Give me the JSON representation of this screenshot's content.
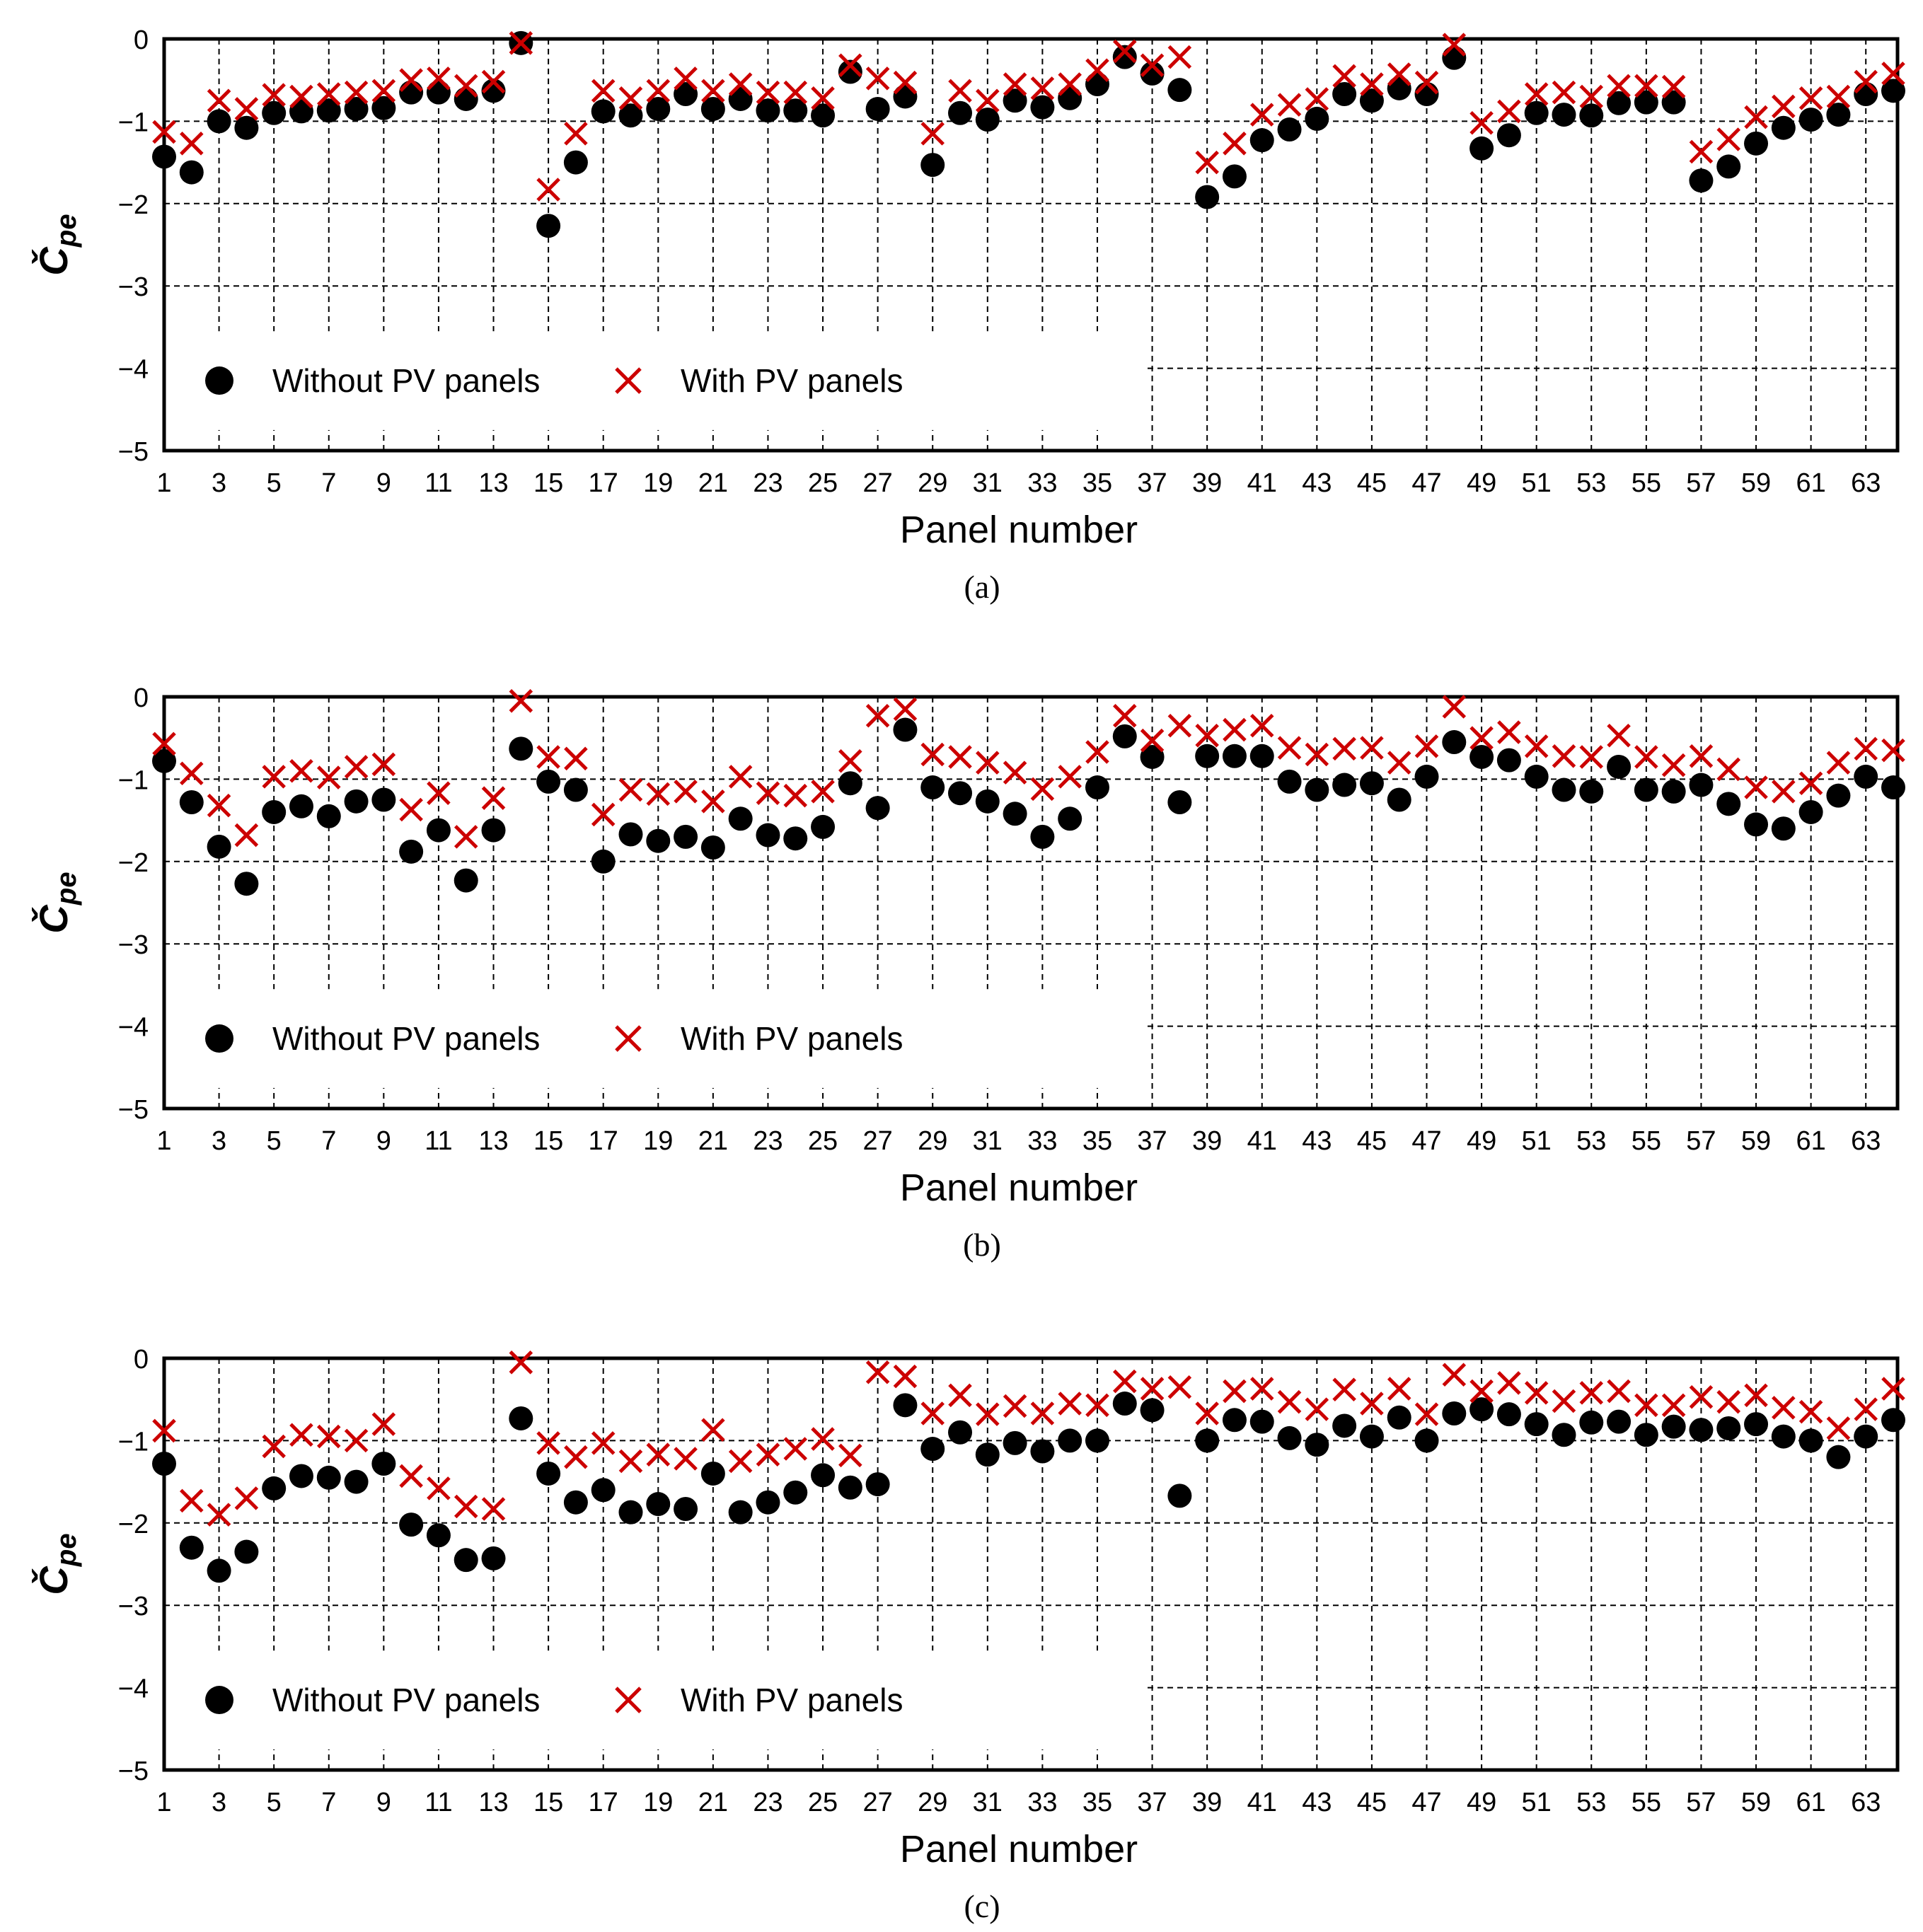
{
  "chart_data": [
    {
      "type": "scatter",
      "caption": "(a)",
      "xlabel": "Panel number",
      "ylabel": "Č",
      "ylabel_sub": "pe",
      "ylim": [
        -5,
        0
      ],
      "y_ticks": [
        "0",
        "−1",
        "−2",
        "−3",
        "−4",
        "−5"
      ],
      "x_tick_labels": [
        "1",
        "3",
        "5",
        "7",
        "9",
        "11",
        "13",
        "15",
        "17",
        "19",
        "21",
        "23",
        "25",
        "27",
        "29",
        "31",
        "33",
        "35",
        "37",
        "39",
        "41",
        "43",
        "45",
        "47",
        "49",
        "51",
        "53",
        "55",
        "57",
        "59",
        "61",
        "63"
      ],
      "legend": {
        "placement": "bottom-left"
      },
      "series": [
        {
          "name": "Without PV panels",
          "marker": "circle",
          "color": "#000000",
          "values": [
            -1.43,
            -1.62,
            -1.0,
            -1.08,
            -0.9,
            -0.88,
            -0.87,
            -0.85,
            -0.84,
            -0.65,
            -0.65,
            -0.73,
            -0.63,
            -0.05,
            -2.27,
            -1.5,
            -0.88,
            -0.93,
            -0.85,
            -0.67,
            -0.85,
            -0.73,
            -0.87,
            -0.87,
            -0.93,
            -0.4,
            -0.85,
            -0.7,
            -1.53,
            -0.9,
            -0.98,
            -0.75,
            -0.83,
            -0.72,
            -0.55,
            -0.22,
            -0.42,
            -0.62,
            -1.92,
            -1.67,
            -1.23,
            -1.1,
            -0.97,
            -0.67,
            -0.75,
            -0.6,
            -0.67,
            -0.23,
            -1.33,
            -1.17,
            -0.9,
            -0.92,
            -0.93,
            -0.78,
            -0.77,
            -0.77,
            -1.72,
            -1.55,
            -1.27,
            -1.08,
            -0.98,
            -0.92,
            -0.67,
            -0.63
          ]
        },
        {
          "name": "With PV panels",
          "marker": "x",
          "color": "#cc0000",
          "values": [
            -1.13,
            -1.27,
            -0.75,
            -0.85,
            -0.68,
            -0.7,
            -0.67,
            -0.65,
            -0.63,
            -0.5,
            -0.48,
            -0.57,
            -0.52,
            -0.05,
            -1.83,
            -1.15,
            -0.63,
            -0.72,
            -0.63,
            -0.48,
            -0.63,
            -0.55,
            -0.65,
            -0.65,
            -0.72,
            -0.32,
            -0.48,
            -0.53,
            -1.15,
            -0.63,
            -0.75,
            -0.55,
            -0.6,
            -0.55,
            -0.38,
            -0.15,
            -0.32,
            -0.22,
            -1.5,
            -1.27,
            -0.92,
            -0.8,
            -0.73,
            -0.45,
            -0.55,
            -0.43,
            -0.53,
            -0.07,
            -1.02,
            -0.88,
            -0.67,
            -0.65,
            -0.7,
            -0.57,
            -0.57,
            -0.58,
            -1.37,
            -1.22,
            -0.95,
            -0.82,
            -0.72,
            -0.7,
            -0.52,
            -0.42
          ]
        }
      ]
    },
    {
      "type": "scatter",
      "caption": "(b)",
      "xlabel": "Panel number",
      "ylabel": "Č",
      "ylabel_sub": "pe",
      "ylim": [
        -5,
        0
      ],
      "y_ticks": [
        "0",
        "−1",
        "−2",
        "−3",
        "−4",
        "−5"
      ],
      "x_tick_labels": [
        "1",
        "3",
        "5",
        "7",
        "9",
        "11",
        "13",
        "15",
        "17",
        "19",
        "21",
        "23",
        "25",
        "27",
        "29",
        "31",
        "33",
        "35",
        "37",
        "39",
        "41",
        "43",
        "45",
        "47",
        "49",
        "51",
        "53",
        "55",
        "57",
        "59",
        "61",
        "63"
      ],
      "legend": {
        "placement": "bottom-left"
      },
      "series": [
        {
          "name": "Without PV panels",
          "marker": "circle",
          "color": "#000000",
          "values": [
            -0.78,
            -1.28,
            -1.82,
            -2.27,
            -1.4,
            -1.33,
            -1.45,
            -1.27,
            -1.25,
            -1.88,
            -1.62,
            -2.23,
            -1.62,
            -0.63,
            -1.03,
            -1.13,
            -2.0,
            -1.67,
            -1.75,
            -1.7,
            -1.83,
            -1.48,
            -1.68,
            -1.72,
            -1.58,
            -1.05,
            -1.35,
            -0.4,
            -1.1,
            -1.17,
            -1.27,
            -1.42,
            -1.7,
            -1.48,
            -1.1,
            -0.48,
            -0.73,
            -1.28,
            -0.72,
            -0.72,
            -0.72,
            -1.03,
            -1.13,
            -1.07,
            -1.05,
            -1.25,
            -0.97,
            -0.55,
            -0.73,
            -0.77,
            -0.97,
            -1.13,
            -1.15,
            -0.85,
            -1.13,
            -1.15,
            -1.07,
            -1.3,
            -1.55,
            -1.6,
            -1.4,
            -1.2,
            -0.97,
            -1.1
          ]
        },
        {
          "name": "With PV panels",
          "marker": "x",
          "color": "#cc0000",
          "values": [
            -0.57,
            -0.93,
            -1.32,
            -1.68,
            -0.97,
            -0.9,
            -0.98,
            -0.85,
            -0.82,
            -1.37,
            -1.17,
            -1.7,
            -1.23,
            -0.05,
            -0.73,
            -0.75,
            -1.43,
            -1.13,
            -1.18,
            -1.15,
            -1.27,
            -0.97,
            -1.17,
            -1.2,
            -1.15,
            -0.78,
            -0.23,
            -0.15,
            -0.7,
            -0.73,
            -0.8,
            -0.92,
            -1.12,
            -0.97,
            -0.67,
            -0.23,
            -0.53,
            -0.35,
            -0.47,
            -0.4,
            -0.35,
            -0.62,
            -0.7,
            -0.63,
            -0.62,
            -0.8,
            -0.6,
            -0.12,
            -0.5,
            -0.43,
            -0.6,
            -0.72,
            -0.73,
            -0.47,
            -0.73,
            -0.83,
            -0.72,
            -0.88,
            -1.1,
            -1.15,
            -1.05,
            -0.8,
            -0.63,
            -0.65
          ]
        }
      ]
    },
    {
      "type": "scatter",
      "caption": "(c)",
      "xlabel": "Panel number",
      "ylabel": "Č",
      "ylabel_sub": "pe",
      "ylim": [
        -5,
        0
      ],
      "y_ticks": [
        "0",
        "−1",
        "−2",
        "−3",
        "−4",
        "−5"
      ],
      "x_tick_labels": [
        "1",
        "3",
        "5",
        "7",
        "9",
        "11",
        "13",
        "15",
        "17",
        "19",
        "21",
        "23",
        "25",
        "27",
        "29",
        "31",
        "33",
        "35",
        "37",
        "39",
        "41",
        "43",
        "45",
        "47",
        "49",
        "51",
        "53",
        "55",
        "57",
        "59",
        "61",
        "63"
      ],
      "legend": {
        "placement": "bottom-left"
      },
      "series": [
        {
          "name": "Without PV panels",
          "marker": "circle",
          "color": "#000000",
          "values": [
            -1.28,
            -2.3,
            -2.58,
            -2.35,
            -1.58,
            -1.43,
            -1.45,
            -1.5,
            -1.28,
            -2.02,
            -2.15,
            -2.45,
            -2.43,
            -0.73,
            -1.4,
            -1.75,
            -1.6,
            -1.87,
            -1.77,
            -1.83,
            -1.4,
            -1.87,
            -1.75,
            -1.63,
            -1.42,
            -1.57,
            -1.53,
            -0.57,
            -1.1,
            -0.9,
            -1.17,
            -1.03,
            -1.13,
            -1.0,
            -1.0,
            -0.55,
            -0.63,
            -1.67,
            -1.0,
            -0.75,
            -0.77,
            -0.97,
            -1.05,
            -0.82,
            -0.95,
            -0.72,
            -1.0,
            -0.67,
            -0.62,
            -0.68,
            -0.8,
            -0.93,
            -0.78,
            -0.77,
            -0.93,
            -0.83,
            -0.87,
            -0.85,
            -0.8,
            -0.95,
            -1.0,
            -1.2,
            -0.95,
            -0.75
          ]
        },
        {
          "name": "With PV panels",
          "marker": "x",
          "color": "#cc0000",
          "values": [
            -0.88,
            -1.73,
            -1.9,
            -1.7,
            -1.07,
            -0.93,
            -0.95,
            -1.0,
            -0.8,
            -1.43,
            -1.58,
            -1.8,
            -1.83,
            -0.05,
            -1.03,
            -1.2,
            -1.03,
            -1.25,
            -1.17,
            -1.22,
            -0.87,
            -1.25,
            -1.17,
            -1.1,
            -0.98,
            -1.18,
            -0.17,
            -0.22,
            -0.67,
            -0.45,
            -0.68,
            -0.58,
            -0.67,
            -0.55,
            -0.57,
            -0.28,
            -0.37,
            -0.35,
            -0.67,
            -0.4,
            -0.37,
            -0.53,
            -0.62,
            -0.38,
            -0.55,
            -0.37,
            -0.68,
            -0.2,
            -0.4,
            -0.3,
            -0.42,
            -0.52,
            -0.42,
            -0.4,
            -0.57,
            -0.57,
            -0.47,
            -0.53,
            -0.45,
            -0.6,
            -0.65,
            -0.85,
            -0.62,
            -0.37
          ]
        }
      ]
    }
  ]
}
